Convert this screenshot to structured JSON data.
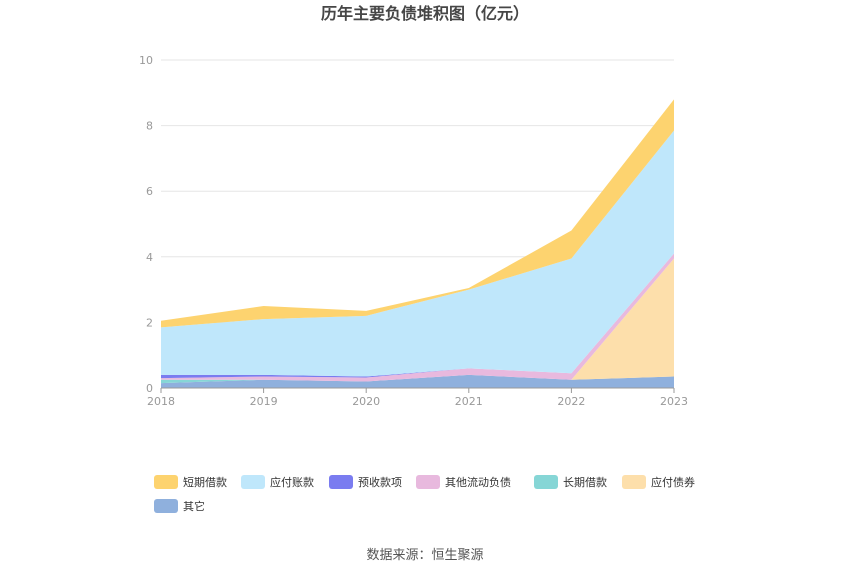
{
  "chart_data": {
    "type": "area",
    "stacked": true,
    "title": "历年主要负债堆积图（亿元）",
    "x": [
      "2018",
      "2019",
      "2020",
      "2021",
      "2022",
      "2023"
    ],
    "y_ticks": [
      "0",
      "2",
      "4",
      "6",
      "8",
      "10"
    ],
    "ylim": [
      0,
      10
    ],
    "grid": true,
    "legend_position": "bottom",
    "series": [
      {
        "name": "其它",
        "color": "#8fb0dd",
        "values": [
          0.15,
          0.25,
          0.2,
          0.4,
          0.25,
          0.35
        ]
      },
      {
        "name": "应付债券",
        "color": "#fddfab",
        "values": [
          0.0,
          0.0,
          0.0,
          0.0,
          0.0,
          3.6
        ]
      },
      {
        "name": "长期借款",
        "color": "#86d6d6",
        "values": [
          0.1,
          0.0,
          0.0,
          0.0,
          0.0,
          0.0
        ]
      },
      {
        "name": "其他流动负债",
        "color": "#e8b9de",
        "values": [
          0.05,
          0.1,
          0.12,
          0.2,
          0.2,
          0.15
        ]
      },
      {
        "name": "预收款项",
        "color": "#7a7cf0",
        "values": [
          0.1,
          0.05,
          0.03,
          0.0,
          0.0,
          0.0
        ]
      },
      {
        "name": "应付账款",
        "color": "#bfe7fb",
        "values": [
          1.45,
          1.7,
          1.85,
          2.4,
          3.5,
          3.75
        ]
      },
      {
        "name": "短期借款",
        "color": "#fdd36f",
        "values": [
          0.2,
          0.4,
          0.15,
          0.05,
          0.85,
          0.95
        ]
      }
    ],
    "legend_order": [
      "短期借款",
      "应付账款",
      "预收款项",
      "其他流动负债",
      "长期借款",
      "应付债券",
      "其它"
    ],
    "source": "数据来源：恒生聚源"
  }
}
